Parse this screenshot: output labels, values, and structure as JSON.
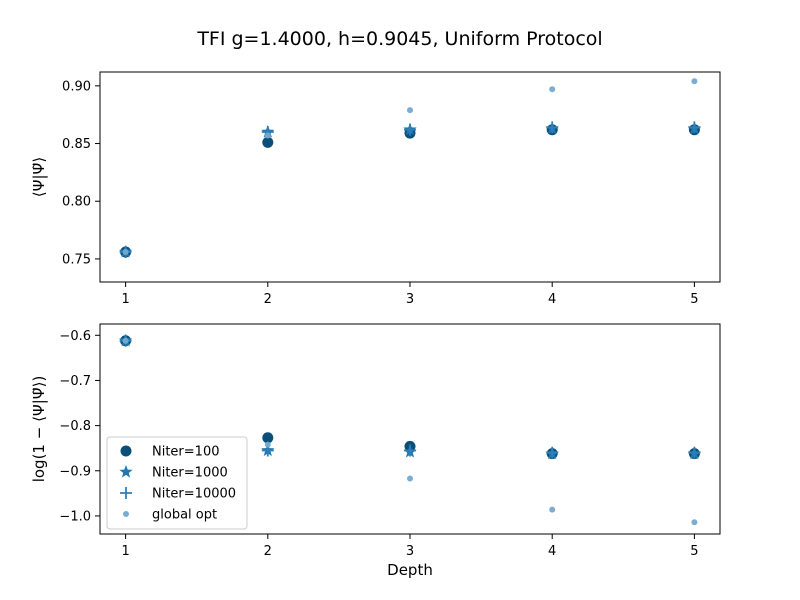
{
  "figure": {
    "title": "TFI g=1.4000, h=0.9045, Uniform Protocol"
  },
  "colors": {
    "Niter=100": "#0b4f79",
    "Niter=1000": "#1f77b4",
    "Niter=10000": "#2f7fb5",
    "global opt": "#74a9cf"
  },
  "chart_data": [
    {
      "type": "scatter",
      "title": "",
      "xlabel": "",
      "ylabel": "⟨Ψ|Ψ̃⟩",
      "x": [
        1,
        2,
        3,
        4,
        5
      ],
      "xticks": [
        "1",
        "2",
        "3",
        "4",
        "5"
      ],
      "ylim": [
        0.73,
        0.912
      ],
      "yticks": [
        0.75,
        0.8,
        0.85,
        0.9
      ],
      "ytick_labels": [
        "0.75",
        "0.80",
        "0.85",
        "0.90"
      ],
      "grid": false,
      "legend": "none",
      "series": [
        {
          "name": "Niter=100",
          "marker": "circle",
          "values": [
            0.756,
            0.851,
            0.859,
            0.862,
            0.862
          ]
        },
        {
          "name": "Niter=1000",
          "marker": "star",
          "values": [
            0.756,
            0.86,
            0.862,
            0.863,
            0.863
          ]
        },
        {
          "name": "Niter=10000",
          "marker": "plus",
          "values": [
            0.756,
            0.86,
            0.862,
            0.864,
            0.864
          ]
        },
        {
          "name": "global opt",
          "marker": "small-circle",
          "values": [
            0.756,
            0.857,
            0.879,
            0.897,
            0.904
          ]
        }
      ]
    },
    {
      "type": "scatter",
      "title": "",
      "xlabel": "Depth",
      "ylabel": "log(1 − ⟨Ψ|Ψ̃⟩)",
      "x": [
        1,
        2,
        3,
        4,
        5
      ],
      "xticks": [
        "1",
        "2",
        "3",
        "4",
        "5"
      ],
      "ylim": [
        -1.04,
        -0.575
      ],
      "yticks": [
        -1.0,
        -0.9,
        -0.8,
        -0.7,
        -0.6
      ],
      "ytick_labels": [
        "−1.0",
        "−0.9",
        "−0.8",
        "−0.7",
        "−0.6"
      ],
      "grid": false,
      "legend": "lower-left",
      "series": [
        {
          "name": "Niter=100",
          "marker": "circle",
          "values": [
            -0.612,
            -0.827,
            -0.846,
            -0.862,
            -0.862
          ]
        },
        {
          "name": "Niter=1000",
          "marker": "star",
          "values": [
            -0.612,
            -0.855,
            -0.858,
            -0.862,
            -0.862
          ]
        },
        {
          "name": "Niter=10000",
          "marker": "plus",
          "values": [
            -0.612,
            -0.855,
            -0.855,
            -0.86,
            -0.86
          ]
        },
        {
          "name": "global opt",
          "marker": "small-circle",
          "values": [
            -0.612,
            -0.842,
            -0.917,
            -0.986,
            -1.014
          ]
        }
      ]
    }
  ]
}
